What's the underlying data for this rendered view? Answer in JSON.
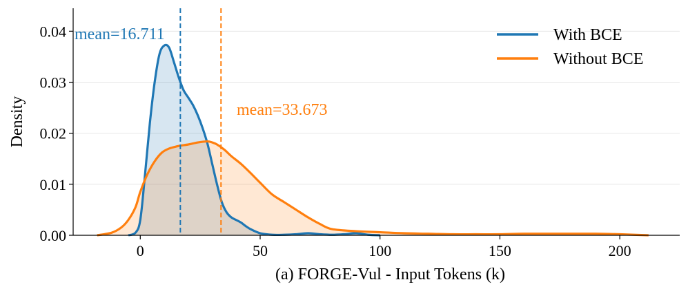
{
  "chart_data": {
    "type": "area",
    "title": "",
    "xlabel": "(a) FORGE-Vul - Input Tokens (k)",
    "ylabel": "Density",
    "xlim": [
      -28,
      225
    ],
    "ylim": [
      0,
      0.0445
    ],
    "xticks": [
      0,
      50,
      100,
      150,
      200
    ],
    "xtick_labels": [
      "0",
      "50",
      "100",
      "150",
      "200"
    ],
    "yticks": [
      0.0,
      0.01,
      0.02,
      0.03,
      0.04
    ],
    "ytick_labels": [
      "0.00",
      "0.01",
      "0.02",
      "0.03",
      "0.04"
    ],
    "grid": "horizontal",
    "legend_position": "top-right",
    "series": [
      {
        "name": "With BCE",
        "color": "#1f77b4",
        "mean": 16.711,
        "mean_label": "mean=16.711",
        "x": [
          -5,
          -2,
          0,
          2,
          4,
          6,
          8,
          10,
          12,
          14,
          16,
          18,
          20,
          22,
          24,
          26,
          28,
          30,
          32,
          34,
          36,
          38,
          40,
          42,
          44,
          46,
          50,
          55,
          60,
          65,
          70,
          75,
          80,
          85,
          90,
          95,
          100
        ],
        "y": [
          0.0,
          0.0005,
          0.003,
          0.012,
          0.022,
          0.03,
          0.0355,
          0.0372,
          0.0368,
          0.034,
          0.031,
          0.0285,
          0.027,
          0.0255,
          0.0235,
          0.021,
          0.018,
          0.014,
          0.01,
          0.0065,
          0.0045,
          0.0035,
          0.003,
          0.0025,
          0.0018,
          0.0012,
          0.0004,
          0.0001,
          0.0001,
          0.0002,
          0.0004,
          0.0002,
          0.0001,
          0.0002,
          0.0004,
          0.0001,
          0.0
        ]
      },
      {
        "name": "Without BCE",
        "color": "#ff7f0e",
        "mean": 33.673,
        "mean_label": "mean=33.673",
        "x": [
          -18,
          -12,
          -8,
          -5,
          -2,
          0,
          3,
          6,
          9,
          12,
          16,
          20,
          24,
          28,
          30,
          32,
          35,
          38,
          42,
          46,
          50,
          55,
          60,
          65,
          70,
          75,
          80,
          90,
          100,
          110,
          120,
          130,
          140,
          150,
          160,
          170,
          180,
          190,
          200,
          212
        ],
        "y": [
          0.0,
          0.0005,
          0.0015,
          0.003,
          0.0055,
          0.0085,
          0.012,
          0.0145,
          0.0162,
          0.017,
          0.0175,
          0.0178,
          0.0182,
          0.0184,
          0.0182,
          0.0178,
          0.0168,
          0.0155,
          0.014,
          0.0122,
          0.0103,
          0.008,
          0.0065,
          0.005,
          0.0035,
          0.0022,
          0.0012,
          0.0008,
          0.0006,
          0.0004,
          0.0003,
          0.0002,
          0.0002,
          0.0002,
          0.0003,
          0.0003,
          0.0003,
          0.0003,
          0.0002,
          0.0
        ]
      }
    ]
  }
}
